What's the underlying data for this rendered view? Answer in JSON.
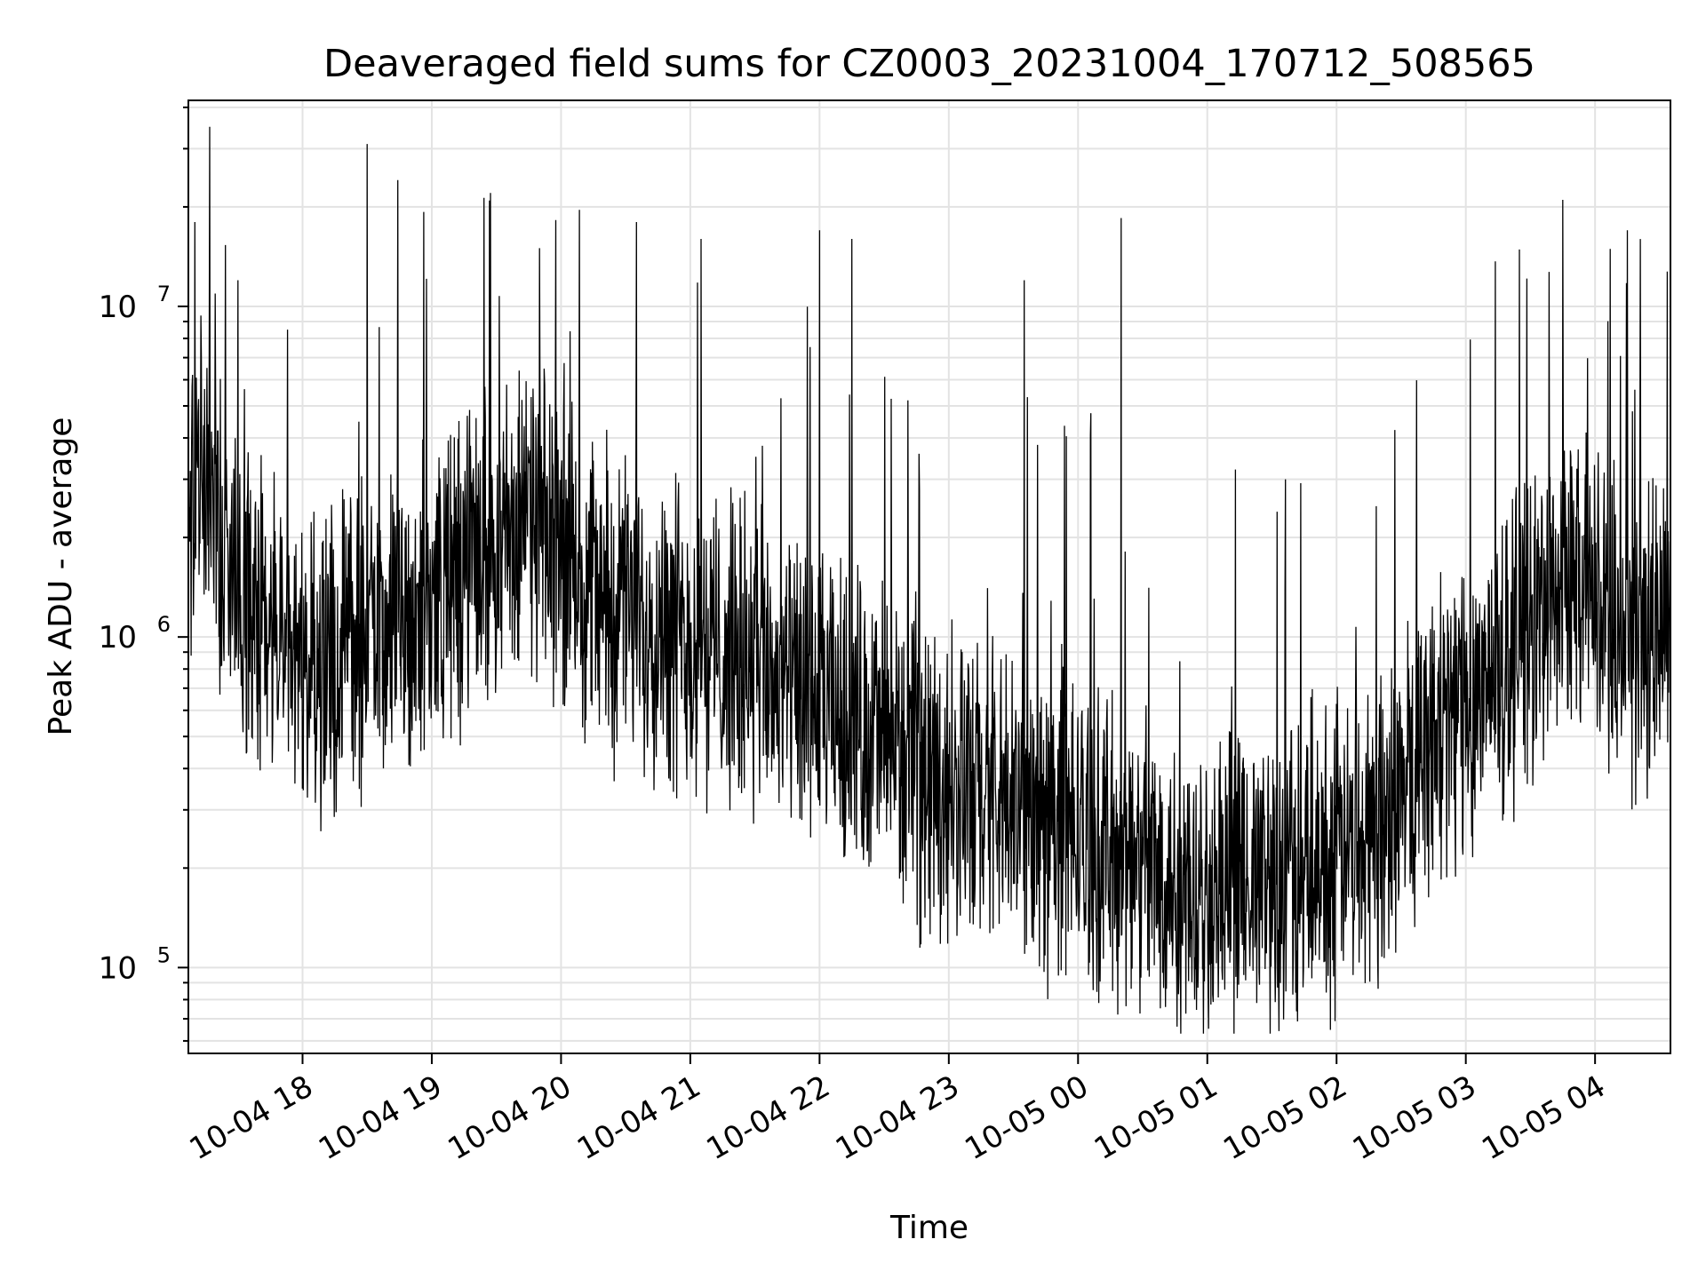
{
  "chart_data": {
    "type": "line",
    "title": "Deaveraged field sums for CZ0003_20231004_170712_508565",
    "xlabel": "Time",
    "ylabel": "Peak ADU - average",
    "yscale": "log",
    "xlim": [
      "2023-10-04 17:07",
      "2023-10-05 04:35"
    ],
    "ylim": [
      55000,
      42000000
    ],
    "grid": true,
    "line_color": "#000000",
    "grid_color": "#e3e3e3",
    "x_ticks": [
      {
        "value": "2023-10-04 18:00",
        "label": "10-04 18"
      },
      {
        "value": "2023-10-04 19:00",
        "label": "10-04 19"
      },
      {
        "value": "2023-10-04 20:00",
        "label": "10-04 20"
      },
      {
        "value": "2023-10-04 21:00",
        "label": "10-04 21"
      },
      {
        "value": "2023-10-04 22:00",
        "label": "10-04 22"
      },
      {
        "value": "2023-10-04 23:00",
        "label": "10-04 23"
      },
      {
        "value": "2023-10-05 00:00",
        "label": "10-05 00"
      },
      {
        "value": "2023-10-05 01:00",
        "label": "10-05 01"
      },
      {
        "value": "2023-10-05 02:00",
        "label": "10-05 02"
      },
      {
        "value": "2023-10-05 03:00",
        "label": "10-05 03"
      },
      {
        "value": "2023-10-05 04:00",
        "label": "10-05 04"
      }
    ],
    "y_ticks": [
      {
        "value": 100000,
        "base": "10",
        "exp": "5"
      },
      {
        "value": 1000000,
        "base": "10",
        "exp": "6"
      },
      {
        "value": 10000000,
        "base": "10",
        "exp": "7"
      }
    ],
    "series": [
      {
        "x": [
          "2023-10-04 17:07",
          "2023-10-04 17:15",
          "2023-10-04 17:20",
          "2023-10-04 17:30",
          "2023-10-04 17:40",
          "2023-10-04 17:50",
          "2023-10-04 18:00",
          "2023-10-04 18:15",
          "2023-10-04 18:30",
          "2023-10-04 18:45",
          "2023-10-04 19:00",
          "2023-10-04 19:15",
          "2023-10-04 19:30",
          "2023-10-04 19:45",
          "2023-10-04 20:00",
          "2023-10-04 20:15",
          "2023-10-04 20:30",
          "2023-10-04 20:45",
          "2023-10-04 21:00",
          "2023-10-04 21:15",
          "2023-10-04 21:30",
          "2023-10-04 21:45",
          "2023-10-04 22:00",
          "2023-10-04 22:15",
          "2023-10-04 22:30",
          "2023-10-04 22:45",
          "2023-10-04 23:00",
          "2023-10-04 23:15",
          "2023-10-04 23:30",
          "2023-10-04 23:45",
          "2023-10-05 00:00",
          "2023-10-05 00:15",
          "2023-10-05 00:30",
          "2023-10-05 00:45",
          "2023-10-05 01:00",
          "2023-10-05 01:15",
          "2023-10-05 01:30",
          "2023-10-05 01:45",
          "2023-10-05 02:00",
          "2023-10-05 02:15",
          "2023-10-05 02:30",
          "2023-10-05 02:45",
          "2023-10-05 03:00",
          "2023-10-05 03:15",
          "2023-10-05 03:30",
          "2023-10-05 03:45",
          "2023-10-05 04:00",
          "2023-10-05 04:15",
          "2023-10-05 04:35"
        ],
        "y": [
          2500000,
          3000000,
          2200000,
          1500000,
          1100000,
          900000,
          750000,
          900000,
          1000000,
          1100000,
          1300000,
          1600000,
          2000000,
          2200000,
          1800000,
          1400000,
          1200000,
          1100000,
          1000000,
          900000,
          800000,
          700000,
          600000,
          550000,
          500000,
          400000,
          350000,
          320000,
          300000,
          280000,
          250000,
          220000,
          200000,
          190000,
          180000,
          170000,
          180000,
          200000,
          220000,
          260000,
          350000,
          500000,
          650000,
          800000,
          1100000,
          1500000,
          1200000,
          1000000,
          1100000
        ]
      }
    ],
    "spikes": [
      {
        "x": "2023-10-04 17:10",
        "y": 18000000
      },
      {
        "x": "2023-10-04 17:30",
        "y": 12000000
      },
      {
        "x": "2023-10-04 18:30",
        "y": 31000000
      },
      {
        "x": "2023-10-04 19:50",
        "y": 15000000
      },
      {
        "x": "2023-10-04 20:35",
        "y": 18000000
      },
      {
        "x": "2023-10-04 21:05",
        "y": 16000000
      },
      {
        "x": "2023-10-04 22:00",
        "y": 17000000
      },
      {
        "x": "2023-10-04 22:15",
        "y": 16000000
      },
      {
        "x": "2023-10-04 23:35",
        "y": 12000000
      },
      {
        "x": "2023-10-05 00:20",
        "y": 18500000
      },
      {
        "x": "2023-10-05 03:45",
        "y": 21000000
      },
      {
        "x": "2023-10-05 04:15",
        "y": 17000000
      }
    ]
  }
}
